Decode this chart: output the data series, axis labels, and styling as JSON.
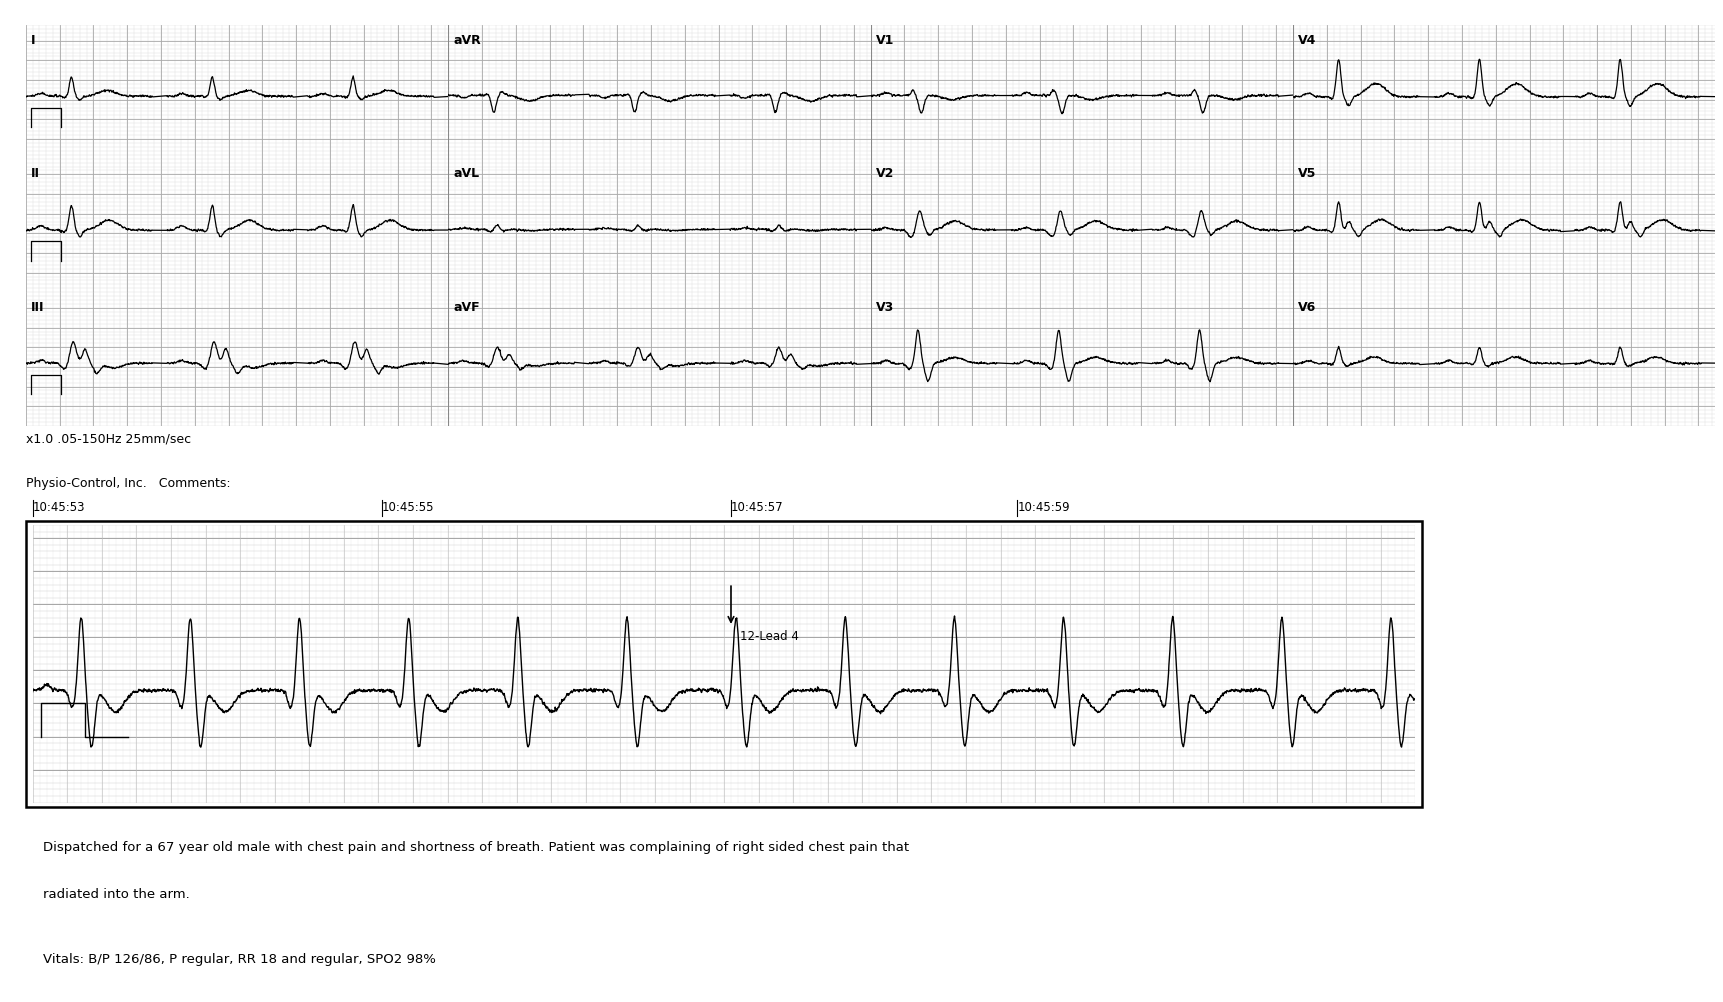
{
  "background_color": "#ffffff",
  "grid_minor_color": "#dddddd",
  "grid_major_color": "#aaaaaa",
  "ecg_color": "#000000",
  "title_text_line1": "x1.0 .05-150Hz 25mm/sec",
  "title_text_line2": "Physio-Control, Inc.   Comments:",
  "time_labels": [
    "10:45:53",
    "10:45:55",
    "10:45:57",
    "10:45:59"
  ],
  "rhythm_annotation": "12-Lead 4",
  "text_line1": "Dispatched for a 67 year old male with chest pain and shortness of breath. Patient was complaining of right sided chest pain that",
  "text_line2": "radiated into the arm.",
  "text_line3": "Vitals: B/P 126/86, P regular, RR 18 and regular, SPO2 98%",
  "ecg_lw": 0.9,
  "strip_lw": 1.0,
  "fig_width": 17.24,
  "fig_height": 10.02,
  "dpi": 100
}
